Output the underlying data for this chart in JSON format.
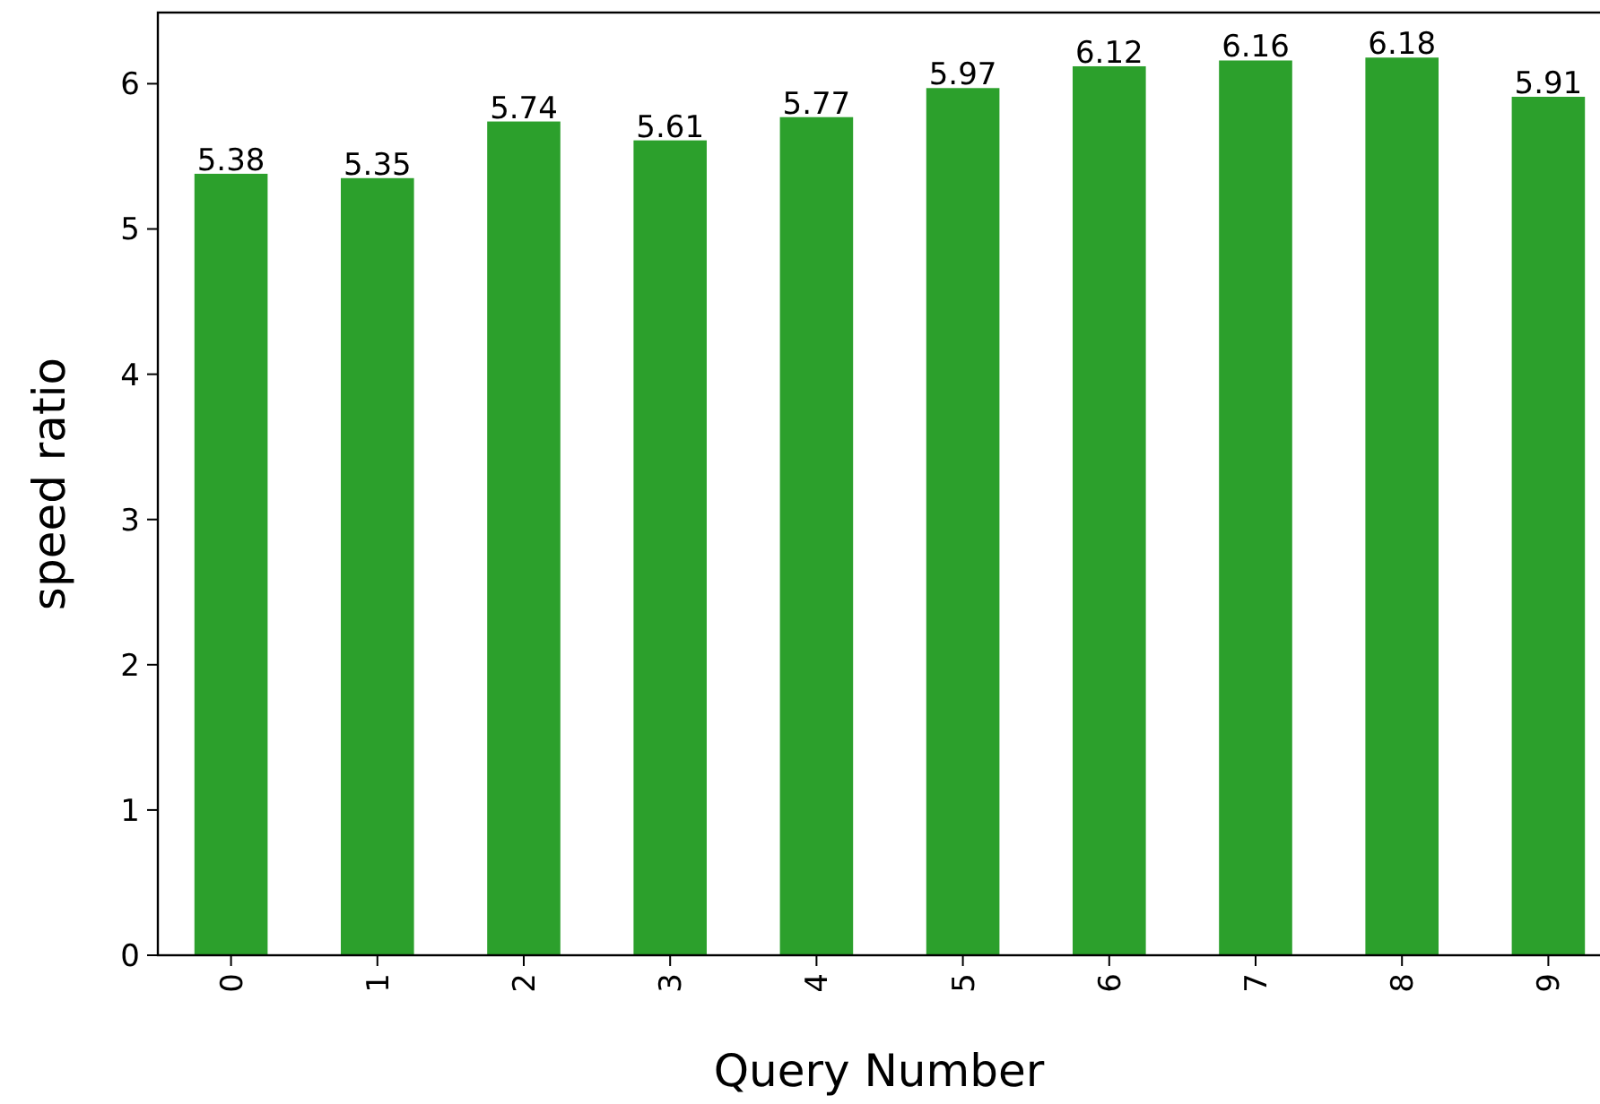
{
  "chart_data": {
    "type": "bar",
    "xlabel": "Query Number",
    "ylabel": "speed ratio",
    "categories": [
      "0",
      "1",
      "2",
      "3",
      "4",
      "5",
      "6",
      "7",
      "8",
      "9"
    ],
    "values": [
      5.38,
      5.35,
      5.74,
      5.61,
      5.77,
      5.97,
      6.12,
      6.16,
      6.18,
      5.91
    ],
    "color": "#2ca02c",
    "ylim": [
      0,
      6.49
    ],
    "yticks": [
      0,
      1,
      2,
      3,
      4,
      5,
      6
    ],
    "data_labels": true
  }
}
